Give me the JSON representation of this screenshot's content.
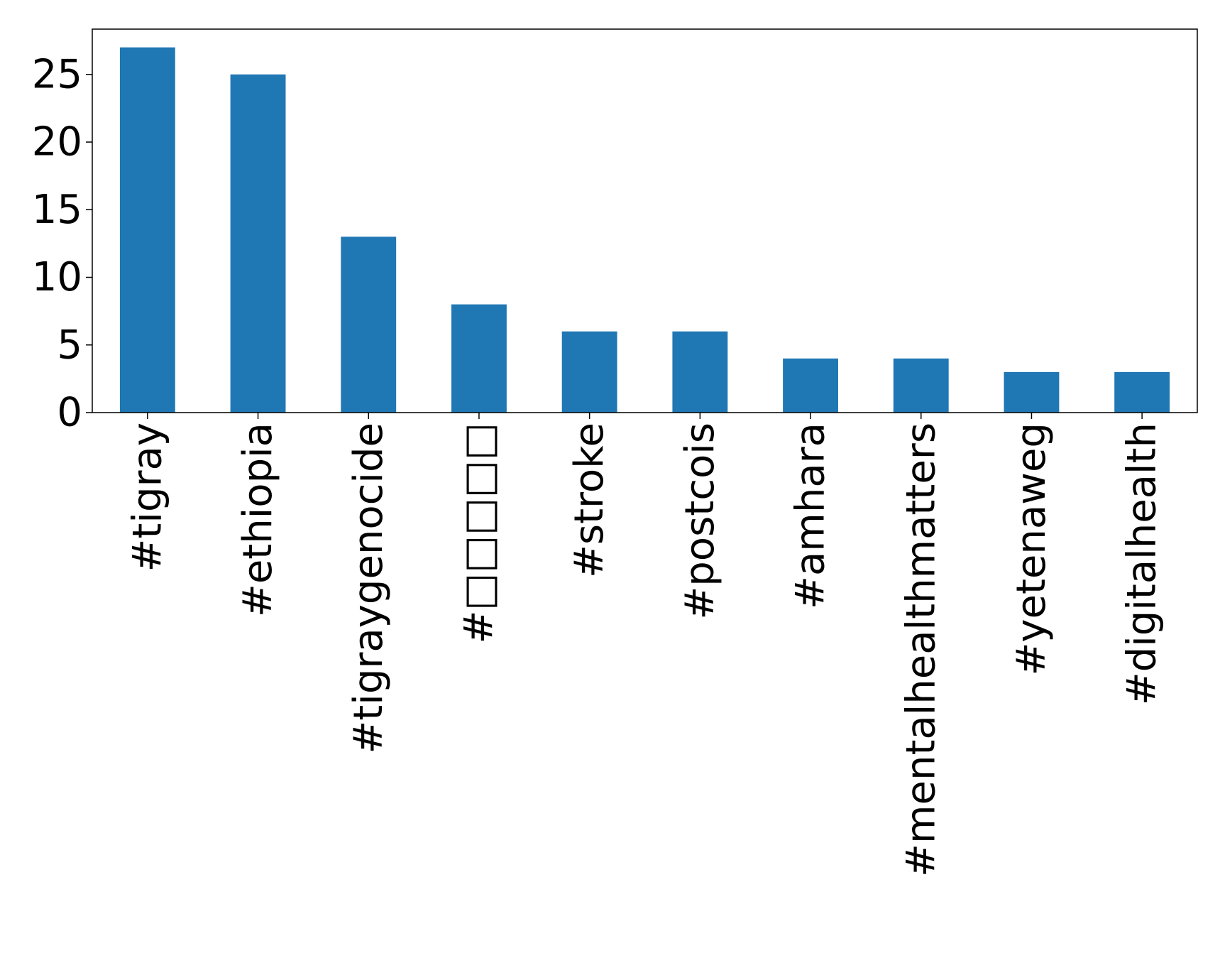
{
  "chart_data": {
    "type": "bar",
    "categories": [
      "#tigray",
      "#ethiopia",
      "#tigraygenocide",
      "#□□□□□",
      "#stroke",
      "#postcois",
      "#amhara",
      "#mentalhealthmatters",
      "#yetenaweg",
      "#digitalhealth"
    ],
    "values": [
      27,
      25,
      13,
      8,
      6,
      6,
      4,
      4,
      3,
      3
    ],
    "title": "",
    "xlabel": "",
    "ylabel": "",
    "ylim": [
      0,
      28.35
    ],
    "yticks": [
      0,
      5,
      10,
      15,
      20,
      25
    ],
    "grid": false,
    "legend": "none",
    "bar_color": "#1f77b4"
  }
}
